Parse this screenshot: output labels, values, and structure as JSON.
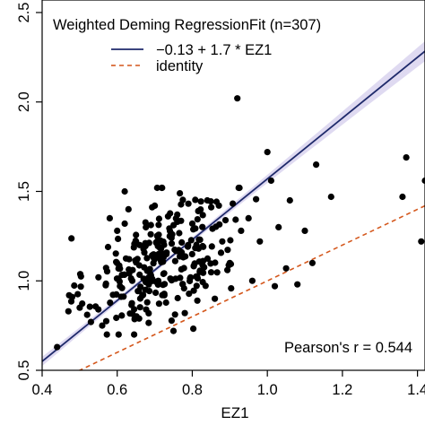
{
  "chart_data": {
    "type": "scatter",
    "title": "Weighted Deming RegressionFit (n=307)",
    "xlabel": "EZ1",
    "ylabel": "",
    "xlim": [
      0.4,
      1.42
    ],
    "ylim": [
      0.5,
      2.57
    ],
    "x_ticks": [
      "0.4",
      "0.6",
      "0.8",
      "1.0",
      "1.2",
      "1.4"
    ],
    "y_ticks": [
      "0.5",
      "1.0",
      "1.5",
      "2.0",
      "2.5"
    ],
    "legend_position": "top-left",
    "annotation": "Pearson's r = 0.544",
    "fit": {
      "label": "−0.13 + 1.7 * EZ1",
      "intercept": -0.13,
      "slope": 1.7,
      "color": "#1f2a6b",
      "band_color": "#d9d4ee"
    },
    "identity": {
      "label": "identity",
      "color": "#d4571c"
    },
    "points_color": "#000000",
    "outlier_points": {
      "x": [
        0.44,
        0.48,
        0.5,
        0.52,
        0.53,
        0.55,
        0.56,
        0.58,
        0.6,
        0.62,
        0.62,
        0.63,
        0.64,
        0.65,
        0.66,
        0.68,
        0.69,
        0.7,
        0.72,
        0.74,
        0.75,
        0.76,
        0.78,
        0.8,
        0.82,
        0.84,
        0.86,
        0.88,
        0.9,
        0.92,
        0.93,
        0.95,
        0.96,
        0.98,
        1.0,
        1.01,
        1.02,
        1.03,
        1.05,
        1.06,
        1.08,
        1.1,
        1.12,
        1.13,
        1.17,
        1.36,
        1.37,
        1.41,
        1.42
      ],
      "y": [
        0.63,
        0.91,
        0.85,
        0.81,
        0.77,
        1.02,
        0.75,
        1.35,
        1.28,
        1.32,
        1.5,
        1.4,
        1.0,
        1.22,
        1.2,
        0.88,
        1.03,
        1.42,
        0.92,
        1.25,
        0.72,
        1.37,
        0.82,
        1.32,
        1.05,
        1.45,
        0.9,
        1.22,
        1.1,
        2.02,
        1.28,
        1.35,
        1.0,
        1.22,
        1.72,
        1.56,
        0.97,
        1.3,
        1.07,
        1.45,
        0.98,
        1.28,
        1.1,
        1.65,
        1.47,
        1.47,
        1.69,
        1.22,
        1.56
      ]
    }
  }
}
